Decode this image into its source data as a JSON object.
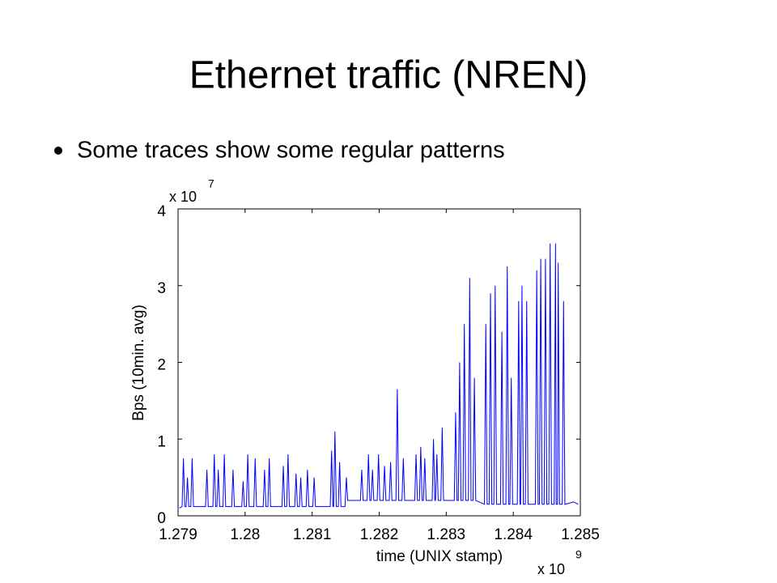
{
  "slide_title": "Ethernet traffic (NREN)",
  "bullet": "Some traces show some regular patterns",
  "chart_data": {
    "type": "line",
    "xlabel": "time (UNIX stamp)",
    "ylabel": "Bps (10min. avg)",
    "x_multiplier": "x 10",
    "x_exponent": "9",
    "y_multiplier": "x 10",
    "y_exponent": "7",
    "xlim": [
      1.279,
      1.285
    ],
    "xticks": [
      1.279,
      1.28,
      1.281,
      1.282,
      1.283,
      1.284,
      1.285
    ],
    "ylim": [
      0,
      4
    ],
    "yticks": [
      0,
      1,
      2,
      3,
      4
    ],
    "color": "#0000ff",
    "x": [
      1.27902,
      1.27906,
      1.27908,
      1.2791,
      1.27912,
      1.27914,
      1.27916,
      1.27919,
      1.27921,
      1.27923,
      1.27941,
      1.27943,
      1.27945,
      1.27952,
      1.27954,
      1.27956,
      1.27958,
      1.2796,
      1.27962,
      1.27967,
      1.27969,
      1.27971,
      1.2798,
      1.27982,
      1.27984,
      1.27995,
      1.27997,
      1.27999,
      1.28002,
      1.28004,
      1.28006,
      1.28013,
      1.28015,
      1.28017,
      1.28027,
      1.28029,
      1.28031,
      1.28034,
      1.28036,
      1.28038,
      1.28055,
      1.28057,
      1.28059,
      1.28062,
      1.28064,
      1.28066,
      1.28074,
      1.28076,
      1.28078,
      1.28081,
      1.28083,
      1.28085,
      1.28091,
      1.28093,
      1.28095,
      1.28101,
      1.28103,
      1.28105,
      1.28127,
      1.28129,
      1.28131,
      1.28132,
      1.28134,
      1.28136,
      1.28139,
      1.28141,
      1.28143,
      1.28149,
      1.28151,
      1.28153,
      1.28172,
      1.28174,
      1.28176,
      1.28182,
      1.28184,
      1.28186,
      1.28188,
      1.2819,
      1.28192,
      1.28197,
      1.28199,
      1.28201,
      1.28206,
      1.28208,
      1.2821,
      1.28215,
      1.28217,
      1.28219,
      1.28225,
      1.28227,
      1.28229,
      1.28234,
      1.28236,
      1.28238,
      1.28253,
      1.28255,
      1.28257,
      1.2826,
      1.28262,
      1.28264,
      1.28266,
      1.28268,
      1.2827,
      1.28279,
      1.28281,
      1.28283,
      1.28284,
      1.28286,
      1.28288,
      1.28292,
      1.28294,
      1.28296,
      1.28312,
      1.28314,
      1.28316,
      1.28318,
      1.2832,
      1.28322,
      1.28325,
      1.28327,
      1.28329,
      1.28333,
      1.28335,
      1.28337,
      1.2834,
      1.28342,
      1.28344,
      1.28357,
      1.28359,
      1.28361,
      1.28364,
      1.28366,
      1.28368,
      1.28371,
      1.28373,
      1.28375,
      1.28381,
      1.28383,
      1.28385,
      1.28389,
      1.28391,
      1.28393,
      1.28395,
      1.28397,
      1.28399,
      1.28406,
      1.28408,
      1.2841,
      1.28411,
      1.28413,
      1.28415,
      1.28418,
      1.2842,
      1.28422,
      1.28433,
      1.28435,
      1.28437,
      1.28439,
      1.28441,
      1.28443,
      1.28446,
      1.28448,
      1.2845,
      1.28453,
      1.28455,
      1.28457,
      1.28461,
      1.28463,
      1.28464,
      1.28466,
      1.28467,
      1.28469,
      1.28473,
      1.28475,
      1.28477,
      1.2849,
      1.28497
    ],
    "values": [
      0.1,
      0.12,
      0.75,
      0.12,
      0.12,
      0.5,
      0.12,
      0.12,
      0.75,
      0.12,
      0.12,
      0.6,
      0.12,
      0.12,
      0.8,
      0.12,
      0.12,
      0.6,
      0.12,
      0.12,
      0.8,
      0.12,
      0.12,
      0.6,
      0.12,
      0.12,
      0.45,
      0.12,
      0.12,
      0.8,
      0.12,
      0.12,
      0.75,
      0.12,
      0.12,
      0.6,
      0.12,
      0.12,
      0.75,
      0.12,
      0.12,
      0.65,
      0.12,
      0.12,
      0.8,
      0.12,
      0.12,
      0.55,
      0.12,
      0.12,
      0.5,
      0.12,
      0.12,
      0.6,
      0.12,
      0.12,
      0.5,
      0.12,
      0.12,
      0.85,
      0.12,
      0.12,
      1.1,
      0.12,
      0.12,
      0.7,
      0.12,
      0.12,
      0.5,
      0.2,
      0.2,
      0.6,
      0.2,
      0.2,
      0.8,
      0.2,
      0.2,
      0.6,
      0.2,
      0.2,
      0.8,
      0.2,
      0.2,
      0.65,
      0.2,
      0.2,
      0.7,
      0.2,
      0.2,
      1.65,
      0.2,
      0.2,
      0.75,
      0.2,
      0.2,
      0.8,
      0.2,
      0.2,
      0.9,
      0.2,
      0.2,
      0.75,
      0.2,
      0.2,
      1.0,
      0.2,
      0.2,
      0.8,
      0.2,
      0.2,
      1.15,
      0.2,
      0.2,
      1.35,
      0.2,
      0.2,
      2.0,
      0.2,
      0.2,
      2.5,
      0.2,
      0.2,
      3.1,
      0.2,
      0.2,
      1.8,
      0.2,
      0.15,
      2.5,
      0.15,
      0.15,
      2.9,
      0.15,
      0.15,
      3.0,
      0.15,
      0.15,
      2.4,
      0.15,
      0.15,
      3.25,
      0.15,
      0.15,
      1.8,
      0.15,
      0.15,
      2.8,
      0.15,
      0.15,
      3.0,
      0.15,
      0.15,
      2.8,
      0.15,
      0.15,
      3.2,
      0.15,
      0.15,
      3.35,
      0.15,
      0.15,
      3.35,
      0.15,
      0.15,
      3.55,
      0.15,
      0.15,
      3.55,
      0.15,
      0.15,
      3.3,
      0.15,
      0.15,
      2.8,
      0.15,
      0.18,
      0.15
    ]
  }
}
